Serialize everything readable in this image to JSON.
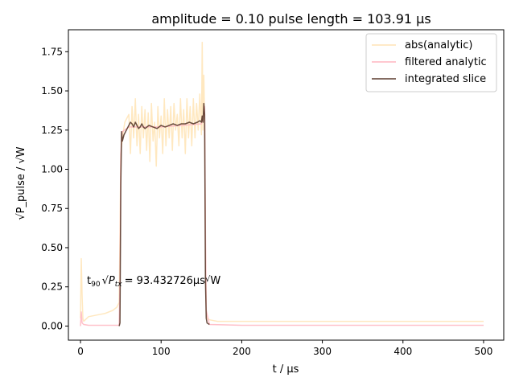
{
  "chart_data": {
    "type": "line",
    "title": "amplitude = 0.10 pulse length = 103.91 μs",
    "xlabel": "t / μs",
    "ylabel": "√P_pulse / √W",
    "xlim": [
      -15,
      525
    ],
    "ylim": [
      -0.09,
      1.89
    ],
    "xticks": [
      0,
      100,
      200,
      300,
      400,
      500
    ],
    "yticks": [
      0.0,
      0.25,
      0.5,
      0.75,
      1.0,
      1.25,
      1.5,
      1.75
    ],
    "xtick_labels": [
      "0",
      "100",
      "200",
      "300",
      "400",
      "500"
    ],
    "ytick_labels": [
      "0.00",
      "0.25",
      "0.50",
      "0.75",
      "1.00",
      "1.25",
      "1.50",
      "1.75"
    ],
    "legend_position": "upper right",
    "annotation": {
      "text_prefix": "t",
      "text_sub": "90",
      "text_sqrt_base": "P",
      "text_sqrt_sub": "tx",
      "text_value": "= 93.432726μs",
      "text_unit": "W",
      "x": 8,
      "y": 0.27
    },
    "series": [
      {
        "name": "abs(analytic)",
        "color": "#ffe4b5",
        "x": [
          0,
          1,
          2,
          3,
          4,
          6,
          10,
          20,
          30,
          40,
          45,
          48,
          49,
          50,
          52,
          55,
          60,
          62,
          64,
          66,
          68,
          70,
          72,
          74,
          76,
          78,
          80,
          82,
          84,
          86,
          88,
          90,
          92,
          94,
          96,
          98,
          100,
          102,
          104,
          106,
          108,
          110,
          112,
          114,
          116,
          118,
          120,
          122,
          124,
          126,
          128,
          130,
          132,
          134,
          136,
          138,
          140,
          142,
          144,
          146,
          148,
          150,
          151,
          152,
          153,
          154,
          155,
          156,
          157,
          160,
          170,
          200,
          250,
          300,
          350,
          400,
          450,
          500
        ],
        "y": [
          0.05,
          0.43,
          0.2,
          0.05,
          0.03,
          0.04,
          0.06,
          0.07,
          0.08,
          0.1,
          0.12,
          0.15,
          0.6,
          1.1,
          1.2,
          1.3,
          1.35,
          1.1,
          1.4,
          1.2,
          1.45,
          1.15,
          1.35,
          1.1,
          1.4,
          1.2,
          1.38,
          1.12,
          1.36,
          1.05,
          1.42,
          1.18,
          1.3,
          1.02,
          1.4,
          1.2,
          1.34,
          1.1,
          1.45,
          1.15,
          1.38,
          1.2,
          1.4,
          1.12,
          1.42,
          1.25,
          1.35,
          1.15,
          1.45,
          1.2,
          1.38,
          1.1,
          1.45,
          1.2,
          1.4,
          1.15,
          1.45,
          1.2,
          1.42,
          1.25,
          1.48,
          1.22,
          1.81,
          1.25,
          1.6,
          1.3,
          0.5,
          0.1,
          0.05,
          0.04,
          0.03,
          0.03,
          0.03,
          0.03,
          0.03,
          0.03,
          0.03,
          0.03
        ]
      },
      {
        "name": "filtered analytic",
        "color": "#ffb6c1",
        "x": [
          0,
          1,
          2,
          4,
          10,
          48,
          49,
          50,
          51,
          52,
          60,
          100,
          150,
          153,
          154,
          155,
          156,
          160,
          200,
          300,
          400,
          500
        ],
        "y": [
          0.0,
          0.09,
          0.02,
          0.01,
          0.005,
          0.005,
          0.3,
          1.1,
          1.2,
          1.24,
          1.27,
          1.27,
          1.29,
          1.35,
          1.4,
          0.6,
          0.1,
          0.01,
          0.005,
          0.005,
          0.005,
          0.005
        ]
      },
      {
        "name": "integrated slice",
        "color": "#5b3c2e",
        "x": [
          0,
          45,
          48,
          49,
          50,
          51,
          52,
          54,
          56,
          58,
          60,
          62,
          64,
          66,
          68,
          70,
          72,
          74,
          76,
          78,
          80,
          85,
          90,
          95,
          100,
          105,
          110,
          115,
          120,
          125,
          130,
          135,
          140,
          145,
          148,
          150,
          151,
          152,
          153,
          154,
          155,
          156,
          157,
          160,
          170,
          300,
          500
        ],
        "y": [
          null,
          null,
          0.0,
          0.02,
          0.9,
          1.24,
          1.18,
          1.22,
          1.24,
          1.26,
          1.28,
          1.3,
          1.29,
          1.27,
          1.3,
          1.28,
          1.26,
          1.27,
          1.29,
          1.27,
          1.26,
          1.28,
          1.27,
          1.26,
          1.28,
          1.27,
          1.28,
          1.29,
          1.28,
          1.29,
          1.29,
          1.3,
          1.29,
          1.3,
          1.31,
          1.3,
          1.34,
          1.3,
          1.42,
          1.35,
          0.3,
          0.05,
          0.02,
          0.01,
          null,
          null,
          null
        ]
      }
    ]
  }
}
